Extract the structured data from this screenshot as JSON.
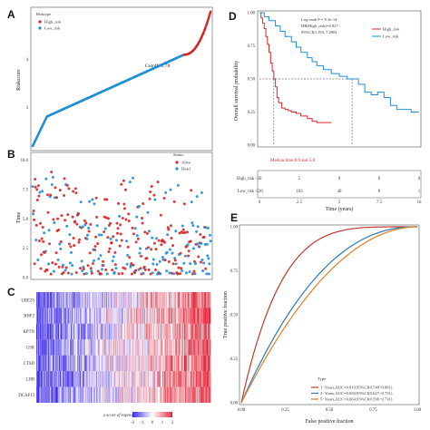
{
  "panels": {
    "A": "A",
    "B": "B",
    "C": "C",
    "D": "D",
    "E": "E"
  },
  "chart_data": [
    {
      "id": "A",
      "type": "scatter",
      "ylabel": "Riskscore",
      "yticks": [
        "4",
        "3"
      ],
      "legend": {
        "title": "Risktype",
        "items": [
          {
            "name": "High_risk",
            "color": "#d62728"
          },
          {
            "name": "Low_risk",
            "color": "#1f8fd6"
          }
        ],
        "position": "top-left"
      },
      "annotation": "Cutoff: 3.78",
      "n_points": 370,
      "cutoff_index": 315,
      "cutoff_value": 3.78,
      "ylim": [
        2.0,
        4.6
      ]
    },
    {
      "id": "B",
      "type": "scatter",
      "ylabel": "Time",
      "yticks": [
        "10.0",
        "7.5",
        "5.0",
        "2.5",
        "0.0"
      ],
      "ylim": [
        0,
        10.5
      ],
      "legend": {
        "title": "Status",
        "items": [
          {
            "name": "Alive",
            "color": "#d62728"
          },
          {
            "name": "Dead",
            "color": "#1f8fd6"
          }
        ],
        "position": "top-right"
      },
      "n_points": 370
    },
    {
      "id": "C",
      "type": "heatmap",
      "rows": [
        "UBE2S",
        "RNF2",
        "KPTN",
        "GSR",
        "CTSD",
        "LHB",
        "DCAF13"
      ],
      "legend": {
        "title": "z-score of expression",
        "ticks": [
          "-2",
          "-1",
          "0",
          "1",
          "2"
        ]
      },
      "n_cols": 370
    },
    {
      "id": "D",
      "type": "line",
      "xlabel": "Time (years)",
      "ylabel": "Overall survival probability",
      "yticks": [
        "1.00",
        "0.75",
        "0.50",
        "0.25",
        "0.00"
      ],
      "xticks": [
        "0",
        "2.5",
        "5",
        "7.5",
        "10"
      ],
      "xlim": [
        0,
        10
      ],
      "ylim": [
        0,
        1
      ],
      "stats": [
        "Log-rank P = 8.3e-14",
        "HR(High_risk)=4.827",
        "95%CI(3.193, 7.298)"
      ],
      "median_note": "Median time:0.9 and 5.8",
      "legend": [
        {
          "name": "High_risk",
          "color": "#d62728"
        },
        {
          "name": "Low_risk",
          "color": "#1f8fd6"
        }
      ],
      "risk_table": {
        "rows": [
          {
            "label": "High_risk -",
            "values": [
              "50",
              "5",
              "0",
              "0",
              "0"
            ]
          },
          {
            "label": "Low_risk -",
            "values": [
              "320",
              "103",
              "40",
              "8",
              "1"
            ]
          }
        ]
      },
      "series": [
        {
          "name": "High_risk",
          "x": [
            0,
            0.1,
            0.2,
            0.3,
            0.4,
            0.5,
            0.6,
            0.7,
            0.8,
            0.9,
            1.0,
            1.1,
            1.2,
            1.4,
            1.6,
            1.8,
            2.0,
            2.3,
            2.6,
            3.0,
            3.3,
            3.6,
            4.0,
            4.5
          ],
          "y": [
            1.0,
            0.96,
            0.92,
            0.88,
            0.82,
            0.76,
            0.7,
            0.62,
            0.56,
            0.5,
            0.44,
            0.36,
            0.32,
            0.28,
            0.27,
            0.26,
            0.25,
            0.24,
            0.22,
            0.2,
            0.18,
            0.17,
            0.17,
            0.17
          ]
        },
        {
          "name": "Low_risk",
          "x": [
            0,
            0.3,
            0.6,
            1.0,
            1.3,
            1.6,
            2.0,
            2.3,
            2.6,
            3.0,
            3.3,
            3.6,
            4.0,
            4.5,
            5.0,
            5.5,
            5.8,
            6.2,
            6.6,
            7.0,
            7.4,
            7.8,
            8.2,
            8.6,
            9.0,
            9.5,
            10.0
          ],
          "y": [
            1.0,
            0.97,
            0.94,
            0.9,
            0.86,
            0.82,
            0.78,
            0.74,
            0.7,
            0.66,
            0.63,
            0.6,
            0.57,
            0.54,
            0.52,
            0.5,
            0.5,
            0.46,
            0.4,
            0.38,
            0.4,
            0.36,
            0.3,
            0.27,
            0.27,
            0.25,
            0.25
          ]
        }
      ]
    },
    {
      "id": "E",
      "type": "line",
      "xlabel": "False positive fraction",
      "ylabel": "True positive fraction",
      "xticks": [
        "0.00",
        "0.25",
        "0.50",
        "0.75",
        "1.00"
      ],
      "yticks": [
        "1.00",
        "0.75",
        "0.50",
        "0.25",
        "0.00"
      ],
      "xlim": [
        0,
        1
      ],
      "ylim": [
        0,
        1
      ],
      "legend": {
        "title": "Type",
        "position": "bottom-right"
      },
      "series": [
        {
          "name": "1−Years,AUC=0.819,95%CI(0.748−0.891)",
          "color": "#c0392b",
          "auc": 0.819
        },
        {
          "name": "3−Years,AUC=0.693,95%CI(0.627−0.751)",
          "color": "#2a7ab8",
          "auc": 0.693
        },
        {
          "name": "5−Years,AUC=0.664,95%CI(0.596−0.731)",
          "color": "#e67e22",
          "auc": 0.664
        }
      ]
    }
  ]
}
